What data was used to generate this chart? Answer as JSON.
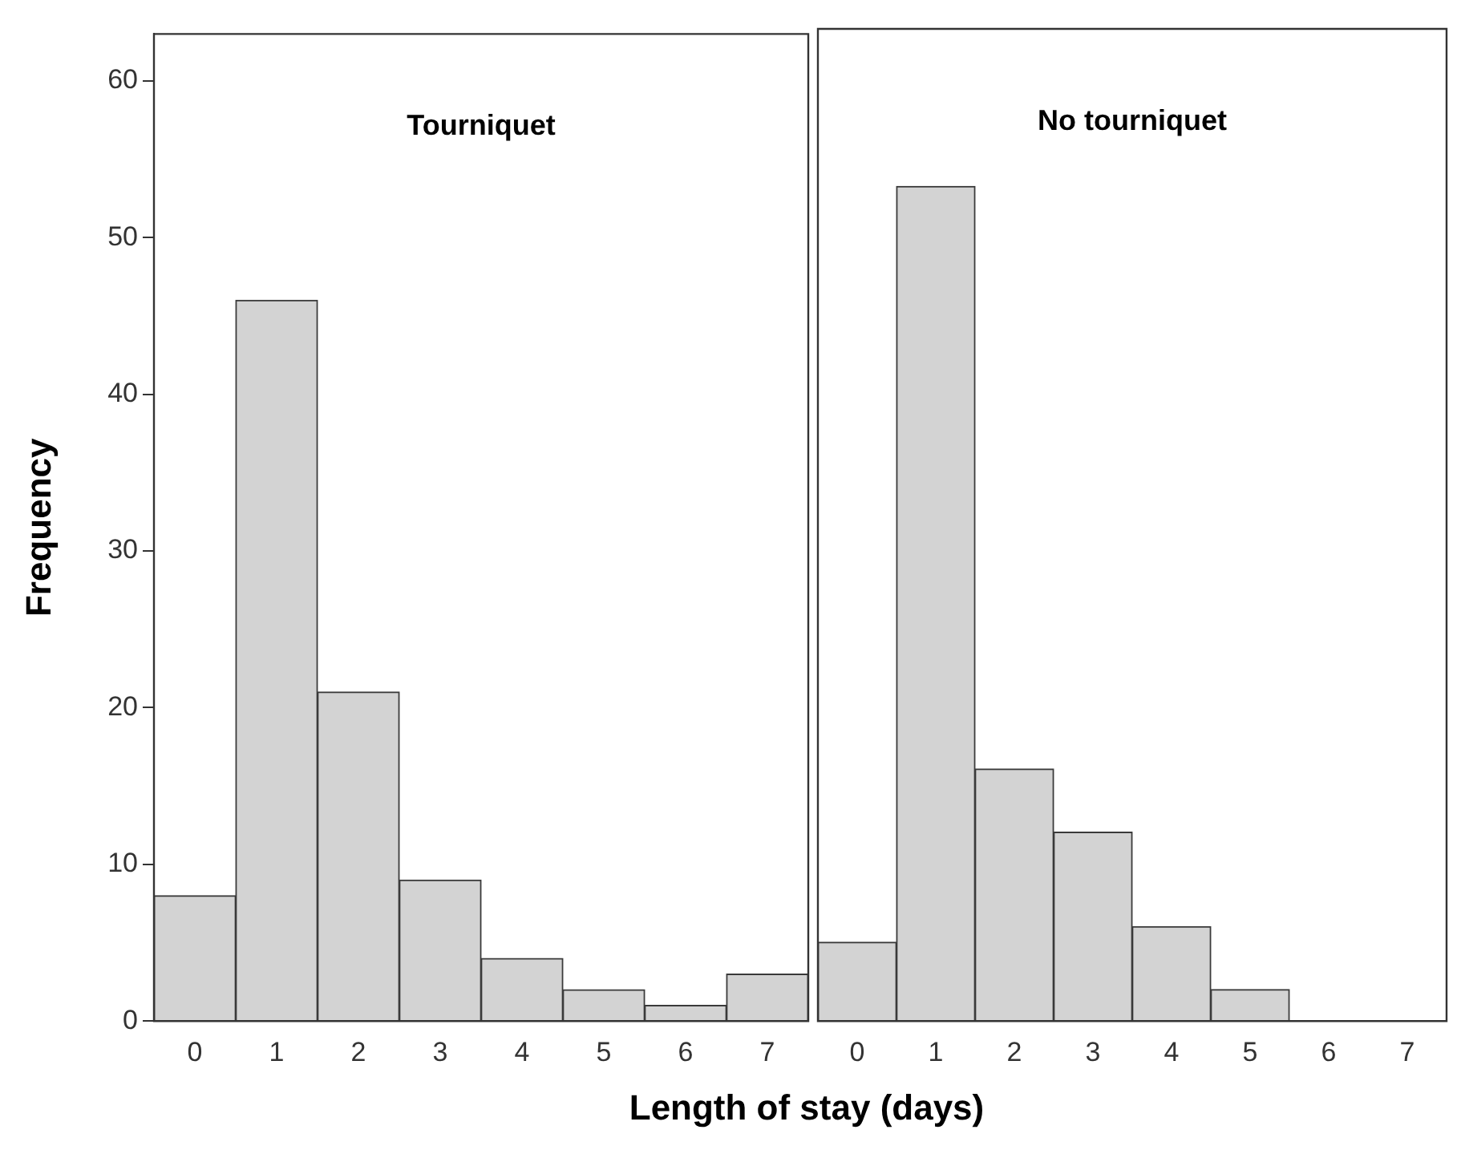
{
  "chart_data": [
    {
      "type": "histogram",
      "title": "Tourniquet",
      "xlabel": "Length of stay (days)",
      "ylabel": "Frequency",
      "color": "#d3d3d3",
      "bins": [
        -0.5,
        0.5,
        1.5,
        2.5,
        3.5,
        4.5,
        5.5,
        6.5,
        7.5
      ],
      "values": [
        8,
        46,
        21,
        9,
        4,
        2,
        1,
        3
      ],
      "xlim": [
        -0.5,
        7.5
      ],
      "xticks": [
        0,
        1,
        2,
        3,
        4,
        5,
        6,
        7
      ],
      "ylim": [
        0,
        63
      ],
      "yticks": [
        0,
        10,
        20,
        30,
        40,
        50,
        60
      ],
      "grid": false
    },
    {
      "type": "histogram",
      "title": "No tourniquet",
      "color": "#d3d3d3",
      "bins": [
        -0.5,
        0.5,
        1.5,
        2.5,
        3.5,
        4.5,
        5.5,
        6.5,
        7.5
      ],
      "values": [
        5,
        53,
        16,
        12,
        6,
        2,
        0,
        0
      ],
      "xlim": [
        -0.5,
        7.5
      ],
      "xticks": [
        0,
        1,
        2,
        3,
        4,
        5,
        6,
        7
      ],
      "ylim": [
        0,
        63
      ],
      "yticks": [
        0,
        10,
        20,
        30,
        40,
        50,
        60
      ],
      "grid": false,
      "tick_labels": "x"
    }
  ]
}
